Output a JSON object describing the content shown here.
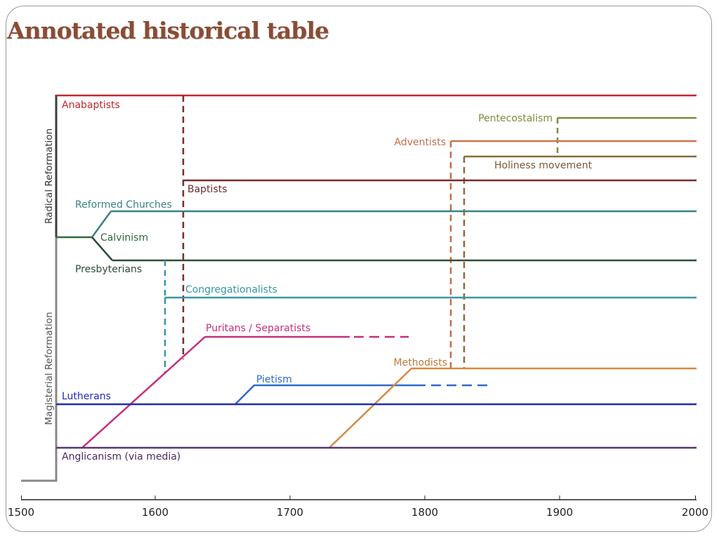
{
  "title": "Annotated historical table",
  "axis": {
    "min": 1500,
    "max": 2000,
    "ticks": [
      "1500",
      "1600",
      "1700",
      "1800",
      "1900",
      "2000"
    ]
  },
  "groups": [
    {
      "name": "Radical Reformation",
      "color": "#3d3d3d"
    },
    {
      "name": "Magisterial Reformation",
      "color": "#6d6d6d"
    }
  ],
  "chart_data": {
    "type": "timeline",
    "movements": [
      {
        "label": "Anabaptists",
        "color": "#c0282e",
        "start": 1525,
        "end": 2000
      },
      {
        "label": "Pentecostalism",
        "color": "#7f8a3a",
        "start": 1898,
        "end": 2000
      },
      {
        "label": "Adventists",
        "color": "#d0714c",
        "start": 1820,
        "end": 2000
      },
      {
        "label": "Holiness movement",
        "color": "#8a6a3c",
        "start": 1829,
        "end": 2000
      },
      {
        "label": "Baptists",
        "color": "#7a2a2c",
        "start": 1620,
        "end": 2000
      },
      {
        "label": "Reformed Churches",
        "color": "#3a8184",
        "start": 1566,
        "end": 2000
      },
      {
        "label": "Calvinism",
        "color": "#2f6b3b",
        "start": 1525,
        "end": 1551
      },
      {
        "label": "Presbyterians",
        "color": "#2e4d33",
        "start": 1566,
        "end": 2000
      },
      {
        "label": "Congregationalists",
        "color": "#3796a4",
        "start": 1606,
        "end": 2000
      },
      {
        "label": "Puritans / Separatists",
        "color": "#c62f7c",
        "start": 1545,
        "end": 1790
      },
      {
        "label": "Pietism",
        "color": "#3169c6",
        "start": 1660,
        "end": 1850
      },
      {
        "label": "Methodists",
        "color": "#d58a44",
        "start": 1729,
        "end": 2000
      },
      {
        "label": "Lutherans",
        "color": "#1f2cb0",
        "start": 1525,
        "end": 2000
      },
      {
        "label": "Anglicanism (via media)",
        "color": "#5a3470",
        "start": 1525,
        "end": 2000
      }
    ]
  }
}
